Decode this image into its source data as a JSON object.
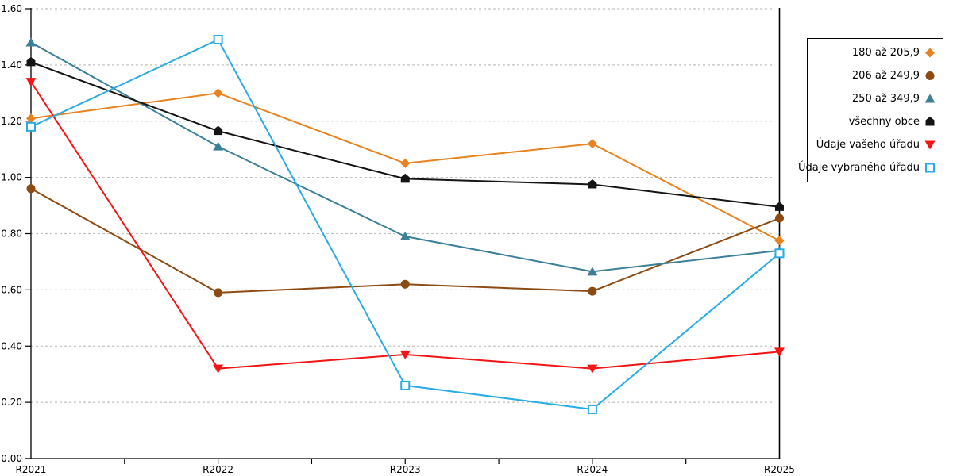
{
  "chart_data": {
    "type": "line",
    "categories": [
      "R2021",
      "R2022",
      "R2023",
      "R2024",
      "R2025"
    ],
    "series": [
      {
        "name": "180 až 205,9",
        "color": "#e8821e",
        "marker": "diamond",
        "values": [
          1.21,
          1.3,
          1.05,
          1.12,
          0.775
        ]
      },
      {
        "name": "206 až 249,9",
        "color": "#8c4b13",
        "marker": "circle",
        "values": [
          0.96,
          0.59,
          0.62,
          0.595,
          0.855
        ]
      },
      {
        "name": "250 až 349,9",
        "color": "#3b7f99",
        "marker": "triangle-up",
        "values": [
          1.48,
          1.11,
          0.79,
          0.665,
          0.74
        ]
      },
      {
        "name": "všechny obce",
        "color": "#141414",
        "marker": "pentagon",
        "values": [
          1.41,
          1.165,
          0.995,
          0.975,
          0.895
        ]
      },
      {
        "name": "Údaje vašeho úřadu",
        "color": "#f41414",
        "marker": "triangle-down",
        "values": [
          1.34,
          0.32,
          0.37,
          0.32,
          0.38
        ]
      },
      {
        "name": "Údaje vybraného úřadu",
        "color": "#29ace3",
        "marker": "square-open",
        "values": [
          1.18,
          1.49,
          0.26,
          0.175,
          0.73
        ]
      }
    ],
    "title": "",
    "xlabel": "",
    "ylabel": "",
    "ylim": [
      0.0,
      1.6
    ],
    "y_tick_step": 0.2,
    "y_tick_labels": [
      "0.00",
      "0.20",
      "0.40",
      "0.60",
      "0.80",
      "1.00",
      "1.20",
      "1.40",
      "1.60"
    ],
    "grid": "dashed-horizontal",
    "grid_color": "#c2c2c2",
    "axis_color": "#000000",
    "legend_position": "right-outside"
  }
}
